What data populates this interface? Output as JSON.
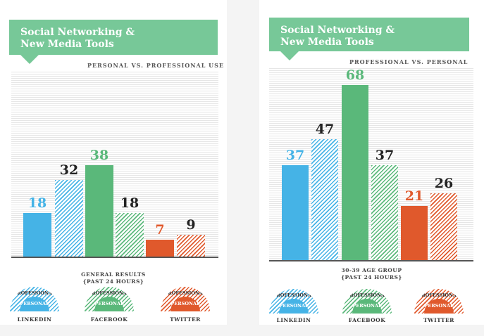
{
  "colors": {
    "blue": "#45b3e6",
    "green": "#5ab87a",
    "orange": "#e0592c",
    "banner": "#77c898"
  },
  "chart_data": [
    {
      "type": "bar",
      "title": "Social Networking & New Media Tools",
      "subtitle": "PERSONAL VS. PROFESSIONAL USE",
      "caption": [
        "GENERAL RESULTS",
        "{PAST 24 HOURS}"
      ],
      "categories": [
        "LINKEDIN",
        "FACEBOOK",
        "TWITTER"
      ],
      "series": [
        {
          "name": "Personal",
          "style": "solid",
          "values": [
            18,
            38,
            7
          ]
        },
        {
          "name": "Professional",
          "style": "striped",
          "values": [
            32,
            18,
            9
          ]
        }
      ],
      "bars": [
        18,
        32,
        38,
        18,
        7,
        9
      ],
      "ylim": [
        0,
        40
      ]
    },
    {
      "type": "bar",
      "title": "Social Networking & New Media Tools",
      "subtitle": "PROFESSIONAL VS. PERSONAL USE",
      "caption": [
        "30-39 AGE GROUP",
        "{PAST 24 HOURS}"
      ],
      "categories": [
        "LINKEDIN",
        "FACEBOOK",
        "TWITTER"
      ],
      "series": [
        {
          "name": "Personal",
          "style": "solid",
          "values": [
            37,
            68,
            21
          ]
        },
        {
          "name": "Professional",
          "style": "striped",
          "values": [
            47,
            37,
            26
          ]
        }
      ],
      "bars": [
        37,
        47,
        68,
        37,
        21,
        26
      ],
      "ylim": [
        0,
        70
      ]
    }
  ],
  "legend": {
    "outer": "PROFESSIONAL",
    "inner": "PERSONAL"
  }
}
